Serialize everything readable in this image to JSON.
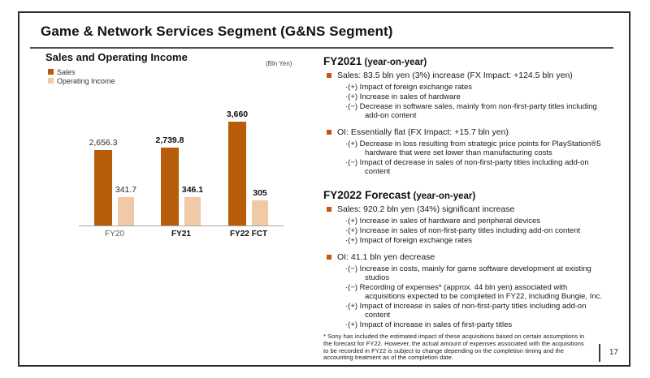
{
  "slide": {
    "title": "Game & Network Services Segment (G&NS Segment)",
    "page_number": "17"
  },
  "chart_data": {
    "type": "bar",
    "title": "Sales and Operating Income",
    "unit_label": "(Bln Yen)",
    "categories": [
      "FY20",
      "FY21",
      "FY22 FCT"
    ],
    "bold_categories": [
      false,
      true,
      true
    ],
    "series": [
      {
        "name": "Sales",
        "color": "#b75c08",
        "values": [
          2656.3,
          2739.8,
          3660
        ],
        "labels": [
          "2,656.3",
          "2,739.8",
          "3,660"
        ]
      },
      {
        "name": "Operating Income",
        "color": "#f0c9a6",
        "values": [
          341.7,
          346.1,
          305
        ],
        "labels": [
          "341.7",
          "346.1",
          "305"
        ]
      }
    ],
    "grid": false,
    "legend_position": "top-left",
    "accent_color": "#c4570e"
  },
  "right": {
    "sections": [
      {
        "heading": "FY2021",
        "heading_suffix": "(year-on-year)",
        "bullets": [
          {
            "label": "Sales: 83.5 bln yen (3%) increase (FX Impact: +124.5 bln yen)",
            "subs": [
              "·(+) Impact of foreign exchange rates",
              "·(+) Increase in sales of hardware",
              "·(−) Decrease in software sales, mainly from non-first-party titles including\nadd-on content"
            ]
          },
          {
            "label": "OI:  Essentially flat (FX Impact: +15.7 bln yen)",
            "subs": [
              "·(+) Decrease in loss resulting from strategic price points for PlayStation®5\nhardware that were set lower than manufacturing costs",
              "·(−) Impact of decrease in sales of non-first-party titles including add-on\ncontent"
            ]
          }
        ]
      },
      {
        "heading": "FY2022 Forecast",
        "heading_suffix": "(year-on-year)",
        "bullets": [
          {
            "label": "Sales: 920.2 bln yen (34%) significant increase",
            "subs": [
              "·(+) Increase in sales of hardware and peripheral devices",
              "·(+) Increase in sales of non-first-party titles including add-on content",
              "·(+) Impact of foreign exchange rates"
            ]
          },
          {
            "label": "OI: 41.1 bln yen decrease",
            "subs": [
              "·(−) Increase in costs, mainly for game software development at existing\nstudios",
              "·(−) Recording of expenses* (approx. 44 bln yen) associated with\nacquisitions expected to be completed in FY22, including Bungie, Inc.",
              "·(+) Impact of increase in sales of non-first-party titles including add-on\ncontent",
              "·(+) Impact of increase in sales of first-party titles"
            ]
          }
        ]
      }
    ],
    "footnote": "* Sony has included the estimated impact of these acquisitions based on certain assumptions in\nthe forecast for FY22. However, the actual amount of expenses associated with the acquisitions\nto be recorded in FY22 is subject to change depending on the completion timing and the\naccounting treatment as of the completion date."
  }
}
